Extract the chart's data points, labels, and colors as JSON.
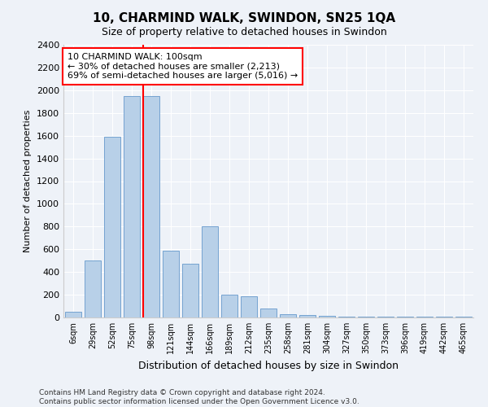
{
  "title": "10, CHARMIND WALK, SWINDON, SN25 1QA",
  "subtitle": "Size of property relative to detached houses in Swindon",
  "xlabel": "Distribution of detached houses by size in Swindon",
  "ylabel": "Number of detached properties",
  "categories": [
    "6sqm",
    "29sqm",
    "52sqm",
    "75sqm",
    "98sqm",
    "121sqm",
    "144sqm",
    "166sqm",
    "189sqm",
    "212sqm",
    "235sqm",
    "258sqm",
    "281sqm",
    "304sqm",
    "327sqm",
    "350sqm",
    "373sqm",
    "396sqm",
    "419sqm",
    "442sqm",
    "465sqm"
  ],
  "values": [
    50,
    500,
    1590,
    1950,
    1950,
    590,
    470,
    800,
    200,
    185,
    80,
    30,
    25,
    15,
    10,
    10,
    5,
    5,
    5,
    5,
    5
  ],
  "bar_color": "#b8d0e8",
  "bar_edge_color": "#6699cc",
  "vline_index": 3.6,
  "annotation_text": "10 CHARMIND WALK: 100sqm\n← 30% of detached houses are smaller (2,213)\n69% of semi-detached houses are larger (5,016) →",
  "annotation_box_color": "white",
  "annotation_box_edge_color": "red",
  "vline_color": "red",
  "ylim": [
    0,
    2400
  ],
  "yticks": [
    0,
    200,
    400,
    600,
    800,
    1000,
    1200,
    1400,
    1600,
    1800,
    2000,
    2200,
    2400
  ],
  "footer_line1": "Contains HM Land Registry data © Crown copyright and database right 2024.",
  "footer_line2": "Contains public sector information licensed under the Open Government Licence v3.0.",
  "background_color": "#eef2f8",
  "plot_background_color": "#eef2f8",
  "grid_color": "white",
  "title_fontsize": 11,
  "subtitle_fontsize": 9,
  "ylabel_fontsize": 8,
  "xlabel_fontsize": 9,
  "tick_fontsize": 8,
  "xtick_fontsize": 7,
  "annotation_fontsize": 8,
  "footer_fontsize": 6.5
}
